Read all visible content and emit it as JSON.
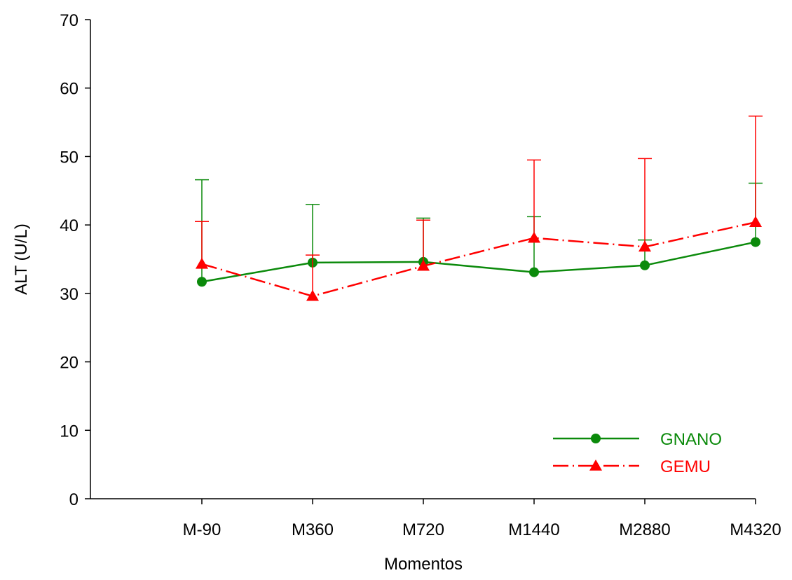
{
  "chart_data": {
    "type": "line",
    "title": "",
    "xlabel": "Momentos",
    "ylabel": "ALT (U/L)",
    "categories": [
      "M-90",
      "M360",
      "M720",
      "M1440",
      "M2880",
      "M4320"
    ],
    "ylim": [
      0,
      70
    ],
    "yticks": [
      "0",
      "10",
      "20",
      "30",
      "40",
      "50",
      "60",
      "70"
    ],
    "grid": false,
    "legend_position": "bottom-right",
    "series": [
      {
        "name": "GNANO",
        "color": "#0b8a0b",
        "marker": "circle",
        "line_style": "solid",
        "values": [
          31.7,
          34.5,
          34.6,
          33.1,
          34.1,
          37.5
        ],
        "error_upper": [
          46.6,
          43.0,
          41.0,
          41.2,
          37.8,
          46.1
        ]
      },
      {
        "name": "GEMU",
        "color": "#ff0000",
        "marker": "triangle",
        "line_style": "dash-dot",
        "values": [
          34.3,
          29.6,
          34.0,
          38.1,
          36.8,
          40.4
        ],
        "error_upper": [
          40.5,
          35.6,
          40.7,
          49.5,
          49.7,
          55.9
        ]
      }
    ]
  }
}
